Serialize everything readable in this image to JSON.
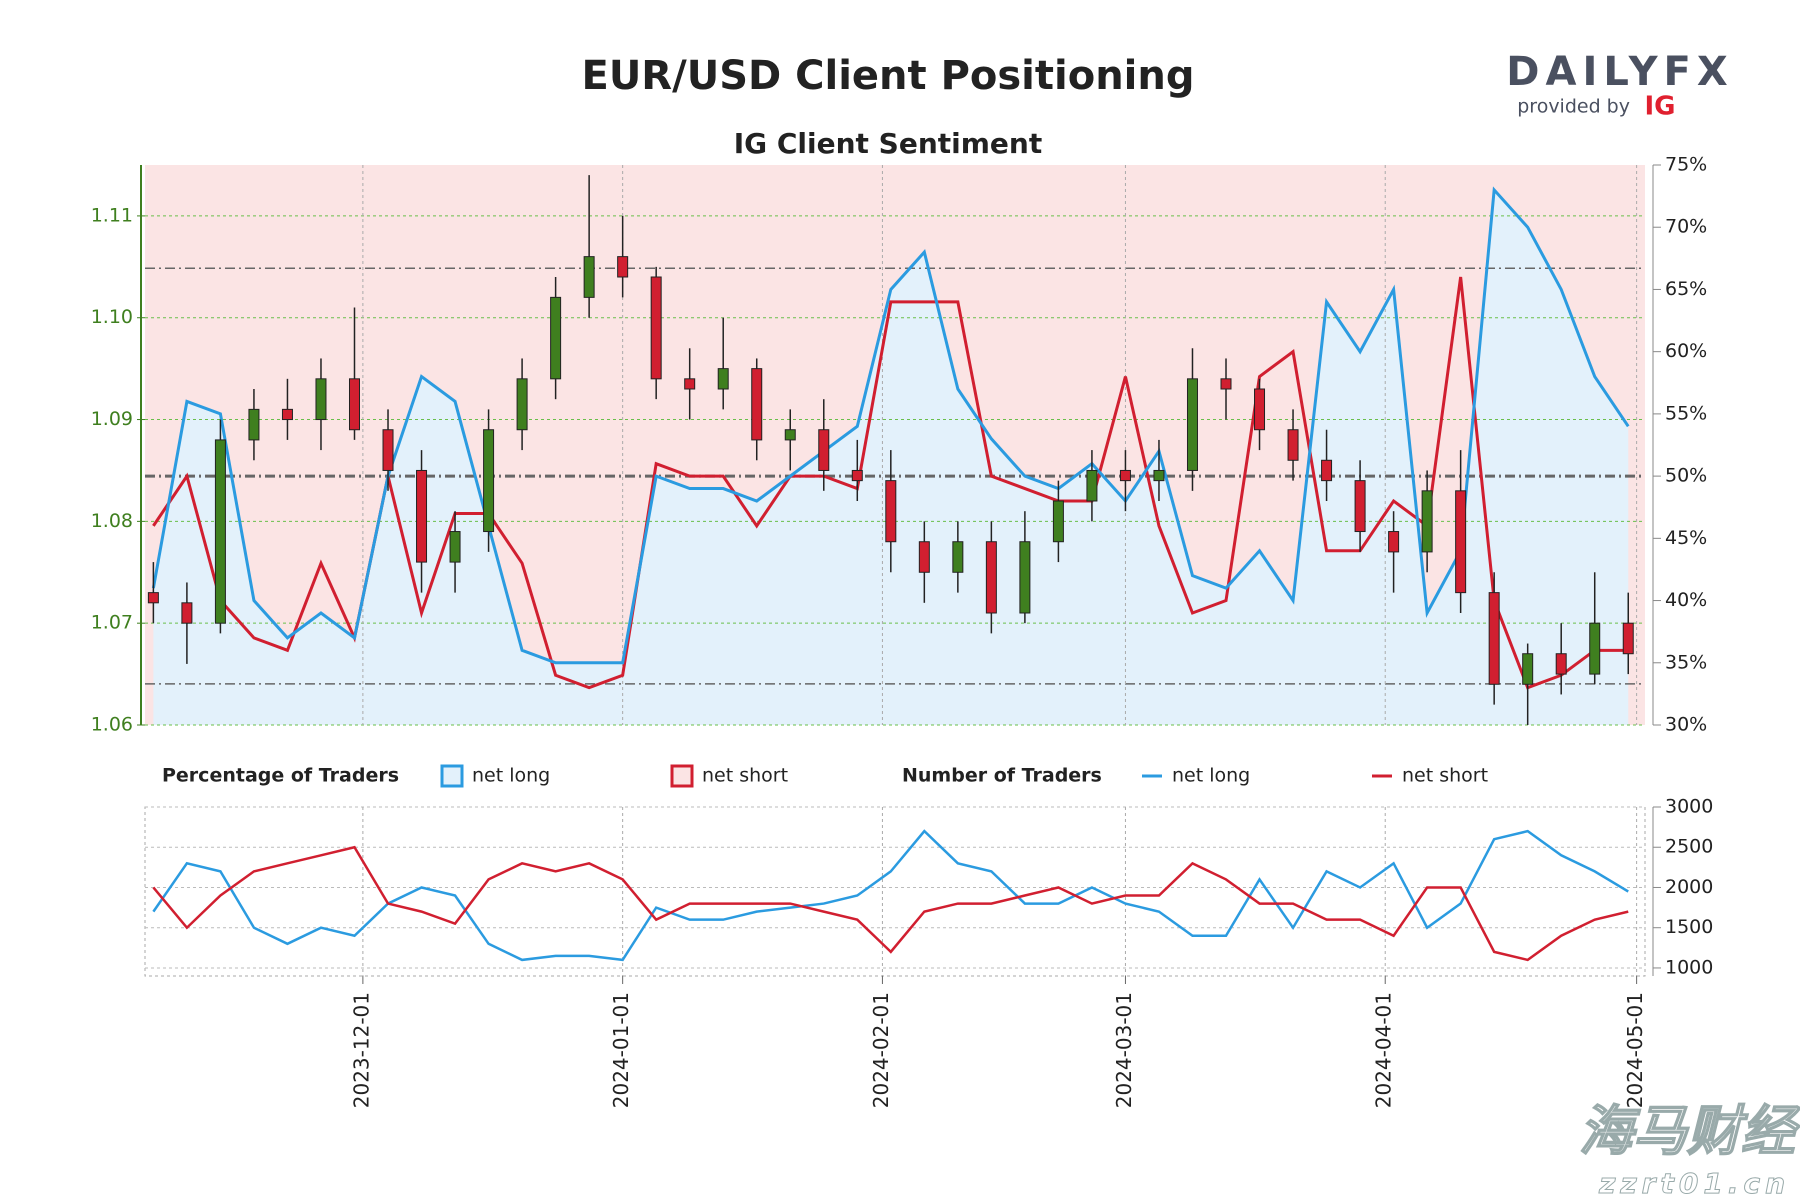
{
  "logo": {
    "brand": "DAILYFX",
    "provided_by": "provided by",
    "ig": "IG"
  },
  "watermark": {
    "name": "海马财经",
    "url": "zzrt01.cn"
  },
  "chart_data": [
    {
      "type": "candlestick",
      "title": "EUR/USD Client Positioning",
      "subtitle": "IG Client Sentiment",
      "x": [
        "2023-11-06",
        "2023-11-10",
        "2023-11-14",
        "2023-11-18",
        "2023-11-22",
        "2023-11-26",
        "2023-11-30",
        "2023-12-04",
        "2023-12-08",
        "2023-12-12",
        "2023-12-16",
        "2023-12-20",
        "2023-12-24",
        "2023-12-28",
        "2024-01-01",
        "2024-01-05",
        "2024-01-09",
        "2024-01-13",
        "2024-01-17",
        "2024-01-21",
        "2024-01-25",
        "2024-01-29",
        "2024-02-02",
        "2024-02-06",
        "2024-02-10",
        "2024-02-14",
        "2024-02-18",
        "2024-02-22",
        "2024-02-26",
        "2024-03-01",
        "2024-03-05",
        "2024-03-09",
        "2024-03-13",
        "2024-03-17",
        "2024-03-21",
        "2024-03-25",
        "2024-03-29",
        "2024-04-02",
        "2024-04-06",
        "2024-04-10",
        "2024-04-14",
        "2024-04-18",
        "2024-04-22",
        "2024-04-26",
        "2024-04-30"
      ],
      "open": [
        1.073,
        1.072,
        1.07,
        1.088,
        1.091,
        1.09,
        1.094,
        1.089,
        1.085,
        1.076,
        1.079,
        1.089,
        1.094,
        1.102,
        1.106,
        1.104,
        1.094,
        1.093,
        1.095,
        1.088,
        1.089,
        1.085,
        1.084,
        1.078,
        1.075,
        1.078,
        1.071,
        1.078,
        1.082,
        1.085,
        1.084,
        1.085,
        1.094,
        1.093,
        1.089,
        1.086,
        1.084,
        1.079,
        1.077,
        1.083,
        1.073,
        1.064,
        1.067,
        1.065,
        1.07
      ],
      "high": [
        1.076,
        1.074,
        1.09,
        1.093,
        1.094,
        1.096,
        1.101,
        1.091,
        1.087,
        1.081,
        1.091,
        1.096,
        1.104,
        1.114,
        1.11,
        1.105,
        1.097,
        1.1,
        1.096,
        1.091,
        1.092,
        1.088,
        1.087,
        1.08,
        1.08,
        1.08,
        1.081,
        1.084,
        1.087,
        1.087,
        1.088,
        1.097,
        1.096,
        1.094,
        1.091,
        1.089,
        1.086,
        1.081,
        1.085,
        1.087,
        1.075,
        1.068,
        1.07,
        1.075,
        1.073
      ],
      "low": [
        1.07,
        1.066,
        1.069,
        1.086,
        1.088,
        1.087,
        1.088,
        1.083,
        1.073,
        1.073,
        1.077,
        1.087,
        1.092,
        1.1,
        1.102,
        1.092,
        1.09,
        1.091,
        1.086,
        1.085,
        1.083,
        1.082,
        1.075,
        1.072,
        1.073,
        1.069,
        1.07,
        1.076,
        1.08,
        1.081,
        1.082,
        1.083,
        1.09,
        1.087,
        1.084,
        1.082,
        1.077,
        1.073,
        1.075,
        1.071,
        1.062,
        1.06,
        1.063,
        1.064,
        1.065
      ],
      "close": [
        1.072,
        1.07,
        1.088,
        1.091,
        1.09,
        1.094,
        1.089,
        1.085,
        1.076,
        1.079,
        1.089,
        1.094,
        1.102,
        1.106,
        1.104,
        1.094,
        1.093,
        1.095,
        1.088,
        1.089,
        1.085,
        1.084,
        1.078,
        1.075,
        1.078,
        1.071,
        1.078,
        1.082,
        1.085,
        1.084,
        1.085,
        1.094,
        1.093,
        1.089,
        1.086,
        1.084,
        1.079,
        1.077,
        1.083,
        1.073,
        1.064,
        1.067,
        1.065,
        1.07,
        1.067
      ],
      "up_color": "#3f7f1f",
      "down_color": "#d11f30",
      "ylim": [
        1.06,
        1.115
      ],
      "yticks": [
        1.06,
        1.07,
        1.08,
        1.09,
        {
          "value": 1.1,
          "label": "1.10"
        },
        1.11
      ],
      "y2lim": [
        30,
        75
      ],
      "y2ticks": [
        {
          "value": 30,
          "label": "30%"
        },
        {
          "value": 35,
          "label": "35%"
        },
        {
          "value": 40,
          "label": "40%"
        },
        {
          "value": 45,
          "label": "45%"
        },
        {
          "value": 50,
          "label": "50%"
        },
        {
          "value": 55,
          "label": "55%"
        },
        {
          "value": 60,
          "label": "60%"
        },
        {
          "value": 65,
          "label": "65%"
        },
        {
          "value": 70,
          "label": "70%"
        },
        {
          "value": 75,
          "label": "75%"
        }
      ],
      "reference_lines": [
        33.3,
        50,
        66.7
      ],
      "legend_title": "Percentage of Traders",
      "series": [
        {
          "name": "net long",
          "color": "#2b9be0",
          "axis": "y2",
          "values": [
            41,
            56,
            55,
            40,
            37,
            39,
            37,
            50,
            58,
            56,
            46,
            36,
            35,
            35,
            35,
            50,
            49,
            49,
            48,
            50,
            52,
            54,
            65,
            68,
            57,
            53,
            50,
            49,
            51,
            48,
            52,
            42,
            41,
            44,
            40,
            64,
            60,
            65,
            39,
            44,
            73,
            70,
            65,
            58,
            54
          ]
        },
        {
          "name": "net short",
          "color": "#d11f30",
          "axis": "y2",
          "values": [
            46,
            50,
            40,
            37,
            36,
            43,
            37,
            50,
            39,
            47,
            47,
            43,
            34,
            33,
            34,
            51,
            50,
            50,
            46,
            50,
            50,
            49,
            64,
            64,
            64,
            50,
            49,
            48,
            48,
            58,
            46,
            39,
            40,
            58,
            60,
            44,
            44,
            48,
            46,
            66,
            40,
            33,
            34,
            36,
            36
          ]
        }
      ],
      "xlim": [
        "2023-11-05",
        "2024-05-02"
      ],
      "grid": true
    },
    {
      "type": "line",
      "legend_title": "Number of Traders",
      "x": [
        "2023-11-06",
        "2023-11-10",
        "2023-11-14",
        "2023-11-18",
        "2023-11-22",
        "2023-11-26",
        "2023-11-30",
        "2023-12-04",
        "2023-12-08",
        "2023-12-12",
        "2023-12-16",
        "2023-12-20",
        "2023-12-24",
        "2023-12-28",
        "2024-01-01",
        "2024-01-05",
        "2024-01-09",
        "2024-01-13",
        "2024-01-17",
        "2024-01-21",
        "2024-01-25",
        "2024-01-29",
        "2024-02-02",
        "2024-02-06",
        "2024-02-10",
        "2024-02-14",
        "2024-02-18",
        "2024-02-22",
        "2024-02-26",
        "2024-03-01",
        "2024-03-05",
        "2024-03-09",
        "2024-03-13",
        "2024-03-17",
        "2024-03-21",
        "2024-03-25",
        "2024-03-29",
        "2024-04-02",
        "2024-04-06",
        "2024-04-10",
        "2024-04-14",
        "2024-04-18",
        "2024-04-22",
        "2024-04-26",
        "2024-04-30"
      ],
      "series": [
        {
          "name": "net long",
          "color": "#2b9be0",
          "values": [
            1700,
            2300,
            2200,
            1500,
            1300,
            1500,
            1400,
            1800,
            2000,
            1900,
            1300,
            1100,
            1150,
            1150,
            1100,
            1750,
            1600,
            1600,
            1700,
            1750,
            1800,
            1900,
            2200,
            2700,
            2300,
            2200,
            1800,
            1800,
            2000,
            1800,
            1700,
            1400,
            1400,
            2100,
            1500,
            2200,
            2000,
            2300,
            1500,
            1800,
            2600,
            2700,
            2400,
            2200,
            1950
          ]
        },
        {
          "name": "net short",
          "color": "#d11f30",
          "values": [
            2000,
            1500,
            1900,
            2200,
            2300,
            2400,
            2500,
            1800,
            1700,
            1550,
            2100,
            2300,
            2200,
            2300,
            2100,
            1600,
            1800,
            1800,
            1800,
            1800,
            1700,
            1600,
            1200,
            1700,
            1800,
            1800,
            1900,
            2000,
            1800,
            1900,
            1900,
            2300,
            2100,
            1800,
            1800,
            1600,
            1600,
            1400,
            2000,
            2000,
            1200,
            1100,
            1400,
            1600,
            1700
          ]
        }
      ],
      "ylim": [
        900,
        3000
      ],
      "yticks": [
        1000,
        1500,
        2000,
        2500,
        3000
      ],
      "xlim": [
        "2023-11-05",
        "2024-05-02"
      ],
      "xticks": [
        "2023-12-01",
        "2024-01-01",
        "2024-02-01",
        "2024-03-01",
        "2024-04-01",
        "2024-05-01"
      ],
      "grid": true
    }
  ]
}
